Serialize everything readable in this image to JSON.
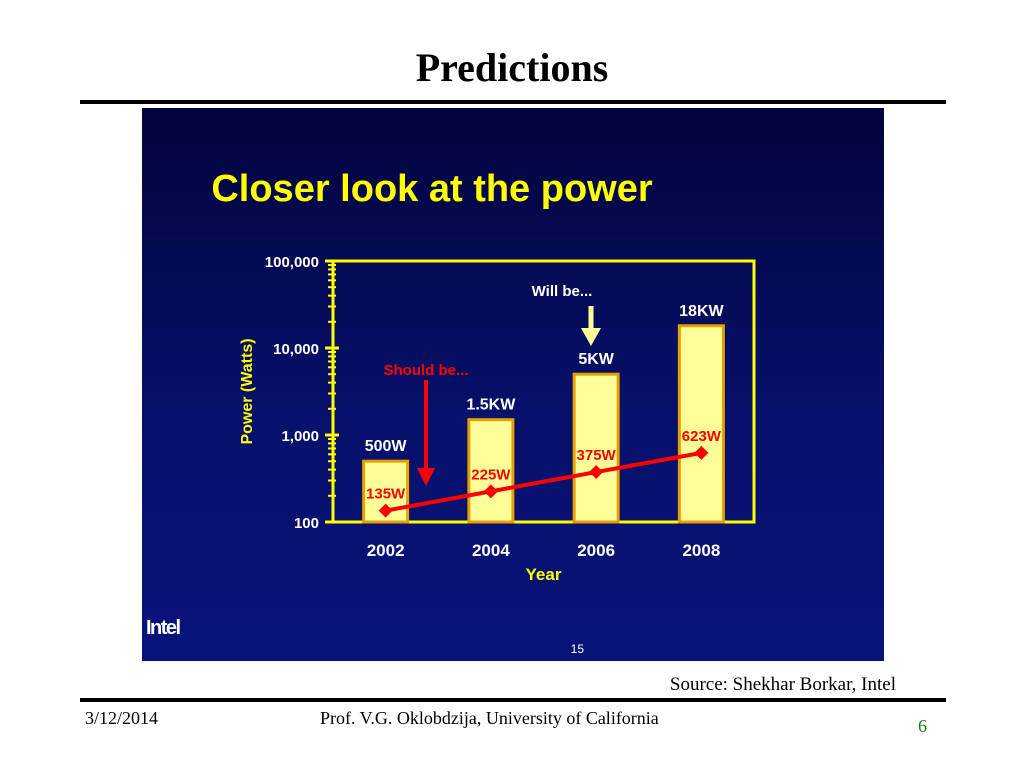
{
  "slide": {
    "title": "Predictions",
    "source": "Source: Shekhar Borkar, Intel",
    "date": "3/12/2014",
    "author": "Prof. V.G. Oklobdzija, University of California",
    "page_number": "6"
  },
  "embedded_slide": {
    "logo_text": "Intel",
    "slide_number": "15"
  },
  "chart_data": {
    "type": "bar",
    "title": "Closer look at the power",
    "xlabel": "Year",
    "ylabel": "Power (Watts)",
    "yscale": "log",
    "ylim": [
      100,
      100000
    ],
    "yticks": [
      {
        "value": 100,
        "label": "100"
      },
      {
        "value": 1000,
        "label": "1,000"
      },
      {
        "value": 10000,
        "label": "10,000"
      },
      {
        "value": 100000,
        "label": "100,000"
      }
    ],
    "categories": [
      "2002",
      "2004",
      "2006",
      "2008"
    ],
    "series": [
      {
        "name": "Will be...",
        "kind": "bar",
        "values": [
          500,
          1500,
          5000,
          18000
        ],
        "labels": [
          "500W",
          "1.5KW",
          "5KW",
          "18KW"
        ]
      },
      {
        "name": "Should be...",
        "kind": "line",
        "values": [
          135,
          225,
          375,
          623
        ],
        "labels": [
          "135W",
          "225W",
          "375W",
          "623W"
        ]
      }
    ],
    "annotations": {
      "will_be": "Will be...",
      "should_be": "Should be..."
    },
    "colors": {
      "bar_fill": "#ffff99",
      "bar_stroke": "#e8a000",
      "axis": "#ffff00",
      "text": "#ffff00",
      "line": "#ff0000",
      "label_white": "#ffffff"
    }
  }
}
